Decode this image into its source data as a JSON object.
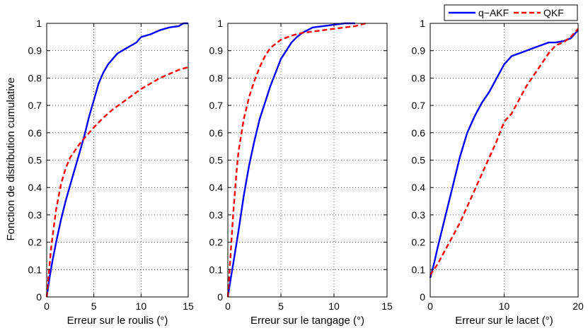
{
  "chart_data": [
    {
      "type": "line",
      "xlabel": "Erreur sur le roulis (°)",
      "ylabel": "Fonction de distribution cumulative",
      "xlim": [
        0,
        15
      ],
      "ylim": [
        0,
        1
      ],
      "xticks": [
        "0",
        "5",
        "10",
        "15"
      ],
      "yticks": [
        "0",
        "0.1",
        "0.2",
        "0.3",
        "0.4",
        "0.5",
        "0.6",
        "0.7",
        "0.8",
        "0.9",
        "1"
      ],
      "grid": "dotted",
      "series": [
        {
          "name": "q−AKF",
          "color": "#0000ff",
          "style": "solid",
          "x": [
            0,
            0.3,
            0.6,
            1.0,
            1.5,
            2.0,
            2.5,
            3.0,
            3.5,
            4.0,
            4.5,
            5.0,
            5.5,
            6.0,
            6.5,
            7.0,
            7.5,
            8.0,
            8.5,
            9.0,
            9.5,
            10.0,
            11.0,
            12.0,
            13.0,
            14.0,
            14.5,
            15.0
          ],
          "y": [
            0,
            0.07,
            0.13,
            0.2,
            0.28,
            0.35,
            0.41,
            0.47,
            0.53,
            0.59,
            0.66,
            0.72,
            0.78,
            0.82,
            0.85,
            0.87,
            0.89,
            0.9,
            0.91,
            0.92,
            0.93,
            0.95,
            0.96,
            0.975,
            0.985,
            0.99,
            1.0,
            1.0
          ]
        },
        {
          "name": "QKF",
          "color": "#ff0000",
          "style": "dashed",
          "x": [
            0,
            0.2,
            0.5,
            1.0,
            1.5,
            2.0,
            2.5,
            3.0,
            3.5,
            4.0,
            5.0,
            6.0,
            7.0,
            8.0,
            9.0,
            10.0,
            11.0,
            12.0,
            13.0,
            14.0,
            15.0
          ],
          "y": [
            0,
            0.08,
            0.19,
            0.32,
            0.41,
            0.47,
            0.51,
            0.535,
            0.56,
            0.58,
            0.62,
            0.655,
            0.685,
            0.71,
            0.735,
            0.76,
            0.78,
            0.8,
            0.815,
            0.83,
            0.84
          ]
        }
      ]
    },
    {
      "type": "line",
      "xlabel": "Erreur sur le tangage (°)",
      "ylabel": "",
      "xlim": [
        0,
        15
      ],
      "ylim": [
        0,
        1
      ],
      "xticks": [
        "0",
        "5",
        "10",
        "15"
      ],
      "yticks": [
        "0",
        "0.1",
        "0.2",
        "0.3",
        "0.4",
        "0.5",
        "0.6",
        "0.7",
        "0.8",
        "0.9",
        "1"
      ],
      "grid": "dotted",
      "series": [
        {
          "name": "q−AKF",
          "color": "#0000ff",
          "style": "solid",
          "x": [
            0,
            0.2,
            0.5,
            1.0,
            1.5,
            2.0,
            2.5,
            3.0,
            3.5,
            4.0,
            4.5,
            5.0,
            5.5,
            6.0,
            6.5,
            7.0,
            7.5,
            8.0,
            9.0,
            10.0,
            11.0,
            12.0
          ],
          "y": [
            0,
            0.05,
            0.12,
            0.24,
            0.37,
            0.48,
            0.57,
            0.65,
            0.71,
            0.77,
            0.82,
            0.87,
            0.9,
            0.93,
            0.95,
            0.965,
            0.975,
            0.985,
            0.99,
            0.995,
            1.0,
            1.0
          ]
        },
        {
          "name": "QKF",
          "color": "#ff0000",
          "style": "dashed",
          "x": [
            0,
            0.2,
            0.5,
            0.8,
            1.0,
            1.5,
            2.0,
            2.5,
            3.0,
            3.5,
            4.0,
            5.0,
            6.0,
            7.0,
            8.0,
            9.0,
            10.0,
            11.0,
            12.0,
            13.0
          ],
          "y": [
            0,
            0.12,
            0.3,
            0.45,
            0.53,
            0.65,
            0.73,
            0.79,
            0.84,
            0.88,
            0.91,
            0.94,
            0.955,
            0.965,
            0.97,
            0.975,
            0.98,
            0.985,
            0.99,
            1.0
          ]
        }
      ]
    },
    {
      "type": "line",
      "xlabel": "Erreur sur le lacet (°)",
      "ylabel": "",
      "xlim": [
        0,
        20
      ],
      "ylim": [
        0,
        1
      ],
      "xticks": [
        "0",
        "10",
        "20"
      ],
      "yticks": [
        "0",
        "0.1",
        "0.2",
        "0.3",
        "0.4",
        "0.5",
        "0.6",
        "0.7",
        "0.8",
        "0.9",
        "1"
      ],
      "grid": "dotted",
      "legend": {
        "position": "top-right",
        "entries": [
          "q−AKF",
          "QKF"
        ]
      },
      "series": [
        {
          "name": "q−AKF",
          "color": "#0000ff",
          "style": "solid",
          "x": [
            0,
            0.5,
            1.0,
            2.0,
            3.0,
            4.0,
            5.0,
            6.0,
            7.0,
            8.0,
            9.0,
            10.0,
            11.0,
            12.0,
            13.0,
            14.0,
            15.0,
            16.0,
            17.0,
            18.0,
            19.0,
            20.0
          ],
          "y": [
            0.07,
            0.12,
            0.18,
            0.29,
            0.4,
            0.51,
            0.6,
            0.66,
            0.71,
            0.75,
            0.8,
            0.85,
            0.88,
            0.89,
            0.9,
            0.91,
            0.92,
            0.93,
            0.93,
            0.935,
            0.945,
            0.975
          ]
        },
        {
          "name": "QKF",
          "color": "#ff0000",
          "style": "dashed",
          "x": [
            0,
            1.0,
            2.0,
            3.0,
            4.0,
            5.0,
            6.0,
            7.0,
            8.0,
            9.0,
            10.0,
            11.0,
            12.0,
            13.0,
            14.0,
            15.0,
            16.0,
            17.0,
            18.0,
            19.0,
            20.0
          ],
          "y": [
            0.08,
            0.12,
            0.17,
            0.22,
            0.27,
            0.33,
            0.39,
            0.45,
            0.51,
            0.57,
            0.64,
            0.67,
            0.72,
            0.77,
            0.81,
            0.85,
            0.89,
            0.92,
            0.93,
            0.95,
            0.98
          ]
        }
      ]
    }
  ]
}
